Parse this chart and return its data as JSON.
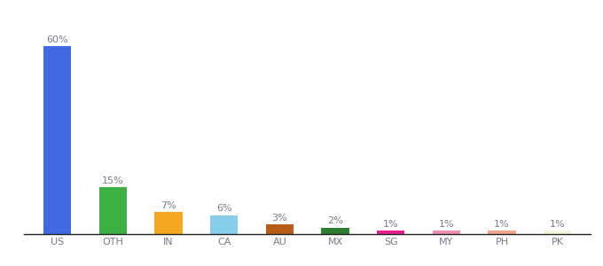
{
  "categories": [
    "US",
    "OTH",
    "IN",
    "CA",
    "AU",
    "MX",
    "SG",
    "MY",
    "PH",
    "PK"
  ],
  "values": [
    60,
    15,
    7,
    6,
    3,
    2,
    1,
    1,
    1,
    1
  ],
  "bar_colors": [
    "#4169e1",
    "#3cb043",
    "#f5a623",
    "#87ceeb",
    "#b85c1a",
    "#2e7d32",
    "#e91e8c",
    "#f48fb1",
    "#f4a58a",
    "#f5f5dc"
  ],
  "labels": [
    "60%",
    "15%",
    "7%",
    "6%",
    "3%",
    "2%",
    "1%",
    "1%",
    "1%",
    "1%"
  ],
  "background_color": "#ffffff",
  "ylim": [
    0,
    68
  ],
  "label_fontsize": 8,
  "tick_fontsize": 8,
  "label_color": "#7a7a8a",
  "tick_color": "#7a7a8a"
}
